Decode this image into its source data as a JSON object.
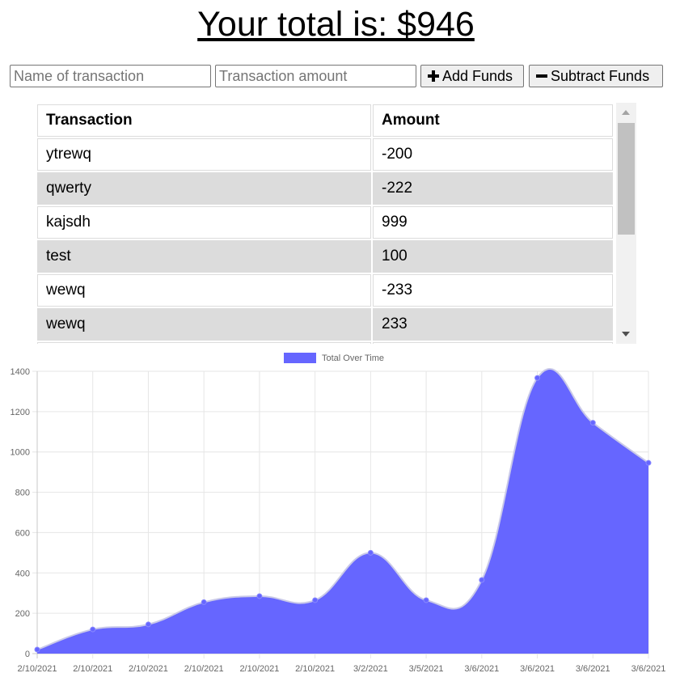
{
  "header": {
    "total_label": "Your total is: $946"
  },
  "form": {
    "name_placeholder": "Name of transaction",
    "amount_placeholder": "Transaction amount",
    "add_label": "Add Funds",
    "add_icon": "plus-icon",
    "subtract_label": "Subtract Funds",
    "subtract_icon": "minus-icon"
  },
  "table": {
    "headers": [
      "Transaction",
      "Amount"
    ],
    "rows": [
      {
        "name": "ytrewq",
        "amount": "-200"
      },
      {
        "name": "qwerty",
        "amount": "-222"
      },
      {
        "name": "kajsdh",
        "amount": "999"
      },
      {
        "name": "test",
        "amount": "100"
      },
      {
        "name": "wewq",
        "amount": "-233"
      },
      {
        "name": "wewq",
        "amount": "233"
      }
    ]
  },
  "chart_data": {
    "type": "area",
    "series": [
      {
        "name": "Total Over Time",
        "color": "#6666ff",
        "values": [
          20,
          120,
          145,
          255,
          285,
          265,
          500,
          265,
          365,
          1367,
          1145,
          946
        ]
      }
    ],
    "categories": [
      "2/10/2021",
      "2/10/2021",
      "2/10/2021",
      "2/10/2021",
      "2/10/2021",
      "2/10/2021",
      "3/2/2021",
      "3/5/2021",
      "3/6/2021",
      "3/6/2021",
      "3/6/2021",
      "3/6/2021"
    ],
    "y_ticks": [
      0,
      200,
      400,
      600,
      800,
      1000,
      1200,
      1400
    ],
    "ylim": [
      0,
      1400
    ],
    "grid": true,
    "legend_position": "top-center"
  }
}
